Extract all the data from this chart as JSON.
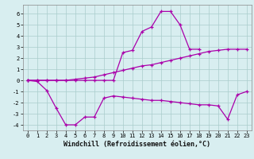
{
  "xlabel": "Windchill (Refroidissement éolien,°C)",
  "background_color": "#d8eef0",
  "grid_color": "#aacccc",
  "line_color": "#aa00aa",
  "x": [
    0,
    1,
    2,
    3,
    4,
    5,
    6,
    7,
    8,
    9,
    10,
    11,
    12,
    13,
    14,
    15,
    16,
    17,
    18,
    19,
    20,
    21,
    22,
    23
  ],
  "line_upper": [
    0.0,
    0.0,
    0.0,
    0.0,
    0.0,
    0.0,
    0.0,
    0.0,
    0.0,
    0.0,
    2.5,
    2.7,
    4.4,
    4.8,
    6.2,
    6.2,
    5.0,
    2.8,
    2.8,
    null,
    null,
    null,
    null,
    null
  ],
  "line_mid": [
    0.0,
    0.0,
    0.0,
    0.0,
    0.0,
    0.1,
    0.2,
    0.3,
    0.5,
    0.7,
    0.9,
    1.1,
    1.3,
    1.4,
    1.6,
    1.8,
    2.0,
    2.2,
    2.4,
    2.6,
    2.7,
    2.8,
    2.8,
    2.8
  ],
  "line_lower": [
    0.0,
    -0.1,
    -0.9,
    -2.5,
    -4.0,
    -4.0,
    -3.3,
    -3.3,
    -1.6,
    -1.4,
    -1.5,
    -1.6,
    -1.7,
    -1.8,
    -1.8,
    -1.9,
    -2.0,
    -2.1,
    -2.2,
    -2.2,
    -2.3,
    -3.5,
    -1.3,
    -1.0
  ],
  "ylim": [
    -4.5,
    6.8
  ],
  "xlim": [
    -0.5,
    23.5
  ],
  "yticks": [
    -4,
    -3,
    -2,
    -1,
    0,
    1,
    2,
    3,
    4,
    5,
    6
  ],
  "xticks": [
    0,
    1,
    2,
    3,
    4,
    5,
    6,
    7,
    8,
    9,
    10,
    11,
    12,
    13,
    14,
    15,
    16,
    17,
    18,
    19,
    20,
    21,
    22,
    23
  ],
  "tick_fontsize": 5.0,
  "xlabel_fontsize": 6.0
}
